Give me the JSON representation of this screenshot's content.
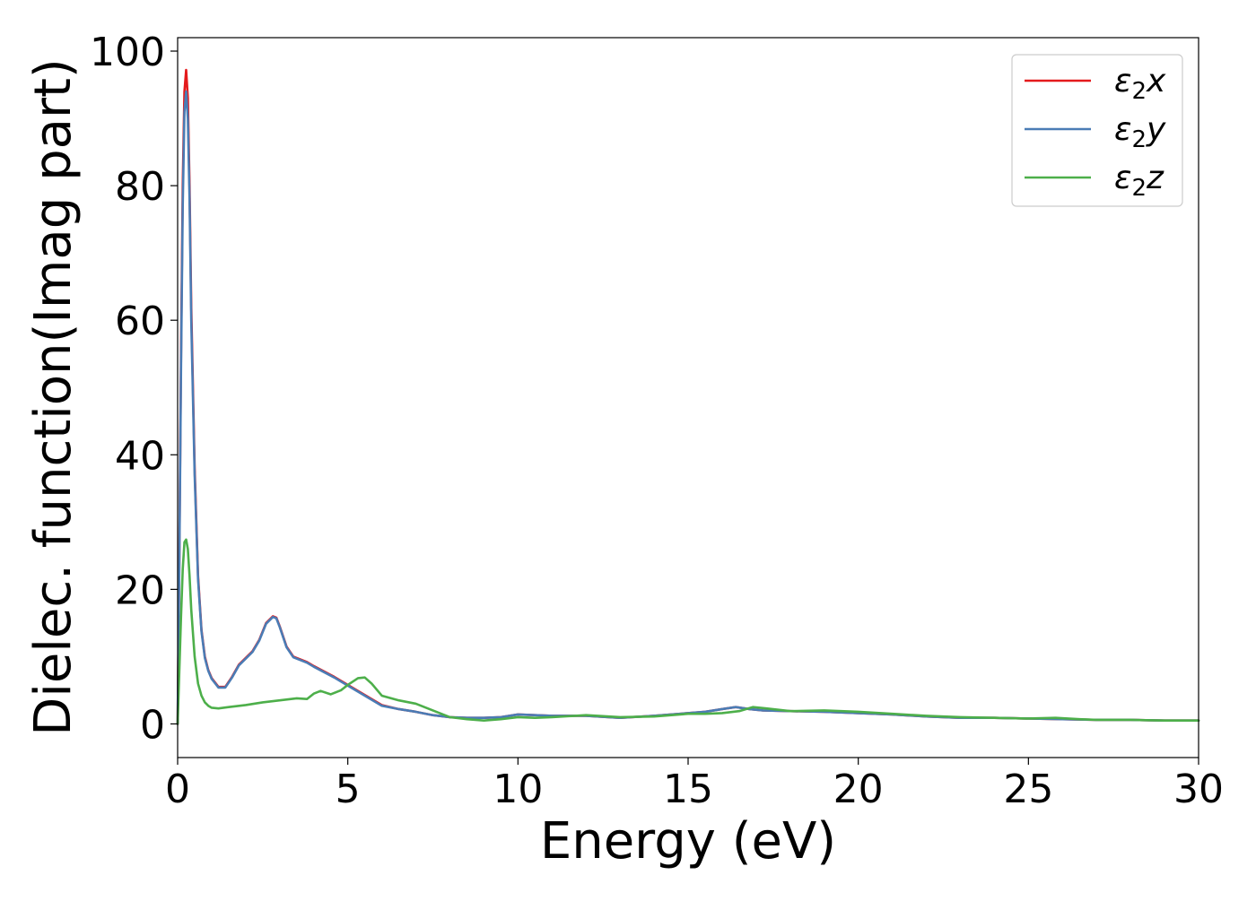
{
  "chart_data": {
    "type": "line",
    "xlabel": "Energy (eV)",
    "ylabel": "Dielec. function(Imag part)",
    "xlim": [
      0,
      30
    ],
    "ylim": [
      -5,
      102
    ],
    "xticks": [
      0,
      5,
      10,
      15,
      20,
      25,
      30
    ],
    "yticks": [
      0,
      20,
      40,
      60,
      80,
      100
    ],
    "grid": false,
    "legend_position": "top-right",
    "series": [
      {
        "name": "ε₂x",
        "legend": {
          "base": "ε",
          "sub": "2",
          "suffix": "x"
        },
        "color": "#e41a1c",
        "x": [
          0,
          0.05,
          0.1,
          0.15,
          0.2,
          0.25,
          0.3,
          0.35,
          0.4,
          0.5,
          0.6,
          0.7,
          0.8,
          0.9,
          1.0,
          1.2,
          1.4,
          1.6,
          1.8,
          2.0,
          2.2,
          2.4,
          2.6,
          2.8,
          2.9,
          3.0,
          3.2,
          3.4,
          3.6,
          3.8,
          4.0,
          4.3,
          4.6,
          5.0,
          5.5,
          6.0,
          6.5,
          7.0,
          7.5,
          8.0,
          8.5,
          9.0,
          9.5,
          10.0,
          10.5,
          11.0,
          12.0,
          13.0,
          14.0,
          15.0,
          15.5,
          16.0,
          16.4,
          16.8,
          17.2,
          18.0,
          19.0,
          20.0,
          21.0,
          22.0,
          23.0,
          24.0,
          25.0,
          26.0,
          27.0,
          28.0,
          29.0,
          30.0
        ],
        "values": [
          0,
          25,
          55,
          80,
          94,
          97.2,
          93,
          80,
          62,
          38,
          22,
          14,
          10,
          8,
          6.8,
          5.5,
          5.5,
          7.0,
          8.8,
          9.8,
          10.8,
          12.5,
          15.0,
          16.0,
          15.8,
          14.5,
          11.5,
          10.0,
          9.6,
          9.2,
          8.6,
          7.8,
          7.0,
          5.8,
          4.3,
          2.8,
          2.2,
          1.8,
          1.3,
          1.0,
          0.9,
          0.9,
          1.0,
          1.4,
          1.3,
          1.2,
          1.2,
          0.9,
          1.2,
          1.6,
          1.8,
          2.2,
          2.5,
          2.2,
          2.0,
          1.9,
          1.8,
          1.6,
          1.4,
          1.1,
          0.9,
          0.9,
          0.8,
          0.7,
          0.6,
          0.6,
          0.5,
          0.5
        ]
      },
      {
        "name": "ε₂y",
        "legend": {
          "base": "ε",
          "sub": "2",
          "suffix": "y"
        },
        "color": "#4a7cb5",
        "x": [
          0,
          0.05,
          0.1,
          0.15,
          0.2,
          0.25,
          0.3,
          0.35,
          0.4,
          0.5,
          0.6,
          0.7,
          0.8,
          0.9,
          1.0,
          1.2,
          1.4,
          1.6,
          1.8,
          2.0,
          2.2,
          2.4,
          2.6,
          2.8,
          2.9,
          3.0,
          3.2,
          3.4,
          3.6,
          3.8,
          4.0,
          4.3,
          4.6,
          5.0,
          5.5,
          6.0,
          6.5,
          7.0,
          7.5,
          8.0,
          8.5,
          9.0,
          9.5,
          10.0,
          10.5,
          11.0,
          12.0,
          13.0,
          14.0,
          15.0,
          15.5,
          16.0,
          16.4,
          16.8,
          17.2,
          18.0,
          19.0,
          20.0,
          21.0,
          22.0,
          23.0,
          24.0,
          25.0,
          26.0,
          27.0,
          28.0,
          29.0,
          30.0
        ],
        "values": [
          0,
          24,
          53,
          77,
          91,
          94.0,
          90,
          78,
          60,
          37,
          21.5,
          13.8,
          9.8,
          7.9,
          6.7,
          5.4,
          5.4,
          6.9,
          8.7,
          9.7,
          10.7,
          12.4,
          14.9,
          15.9,
          15.7,
          14.4,
          11.4,
          9.9,
          9.5,
          9.1,
          8.5,
          7.7,
          6.9,
          5.7,
          4.2,
          2.7,
          2.2,
          1.8,
          1.3,
          1.0,
          0.9,
          0.9,
          1.0,
          1.4,
          1.3,
          1.2,
          1.2,
          0.9,
          1.2,
          1.6,
          1.8,
          2.2,
          2.5,
          2.2,
          2.0,
          1.9,
          1.8,
          1.6,
          1.4,
          1.1,
          0.9,
          0.9,
          0.8,
          0.7,
          0.6,
          0.6,
          0.5,
          0.5
        ]
      },
      {
        "name": "ε₂z",
        "legend": {
          "base": "ε",
          "sub": "2",
          "suffix": "z"
        },
        "color": "#4daf4a",
        "x": [
          0,
          0.05,
          0.1,
          0.15,
          0.2,
          0.25,
          0.3,
          0.35,
          0.4,
          0.5,
          0.6,
          0.7,
          0.8,
          0.9,
          1.0,
          1.2,
          1.5,
          2.0,
          2.5,
          3.0,
          3.5,
          3.8,
          4.0,
          4.2,
          4.5,
          4.8,
          5.0,
          5.3,
          5.5,
          5.7,
          6.0,
          6.5,
          7.0,
          7.5,
          8.0,
          8.5,
          9.0,
          9.5,
          10.0,
          10.5,
          11.0,
          12.0,
          13.0,
          14.0,
          15.0,
          15.5,
          16.0,
          16.5,
          16.9,
          17.3,
          18.0,
          19.0,
          20.0,
          21.0,
          22.0,
          23.0,
          24.0,
          25.0,
          25.8,
          26.5,
          27.0,
          28.0,
          29.0,
          30.0
        ],
        "values": [
          0,
          8,
          16,
          23,
          27,
          27.4,
          26,
          22,
          17,
          10,
          6.0,
          4.2,
          3.2,
          2.7,
          2.4,
          2.3,
          2.5,
          2.8,
          3.2,
          3.5,
          3.8,
          3.7,
          4.5,
          4.9,
          4.4,
          5.0,
          5.8,
          6.8,
          6.9,
          6.0,
          4.2,
          3.5,
          3.0,
          2.0,
          1.0,
          0.7,
          0.5,
          0.7,
          1.0,
          0.9,
          1.0,
          1.3,
          1.0,
          1.1,
          1.5,
          1.5,
          1.6,
          1.9,
          2.5,
          2.3,
          1.9,
          2.0,
          1.8,
          1.5,
          1.2,
          1.0,
          0.9,
          0.8,
          0.9,
          0.7,
          0.6,
          0.6,
          0.5,
          0.5
        ]
      }
    ]
  }
}
